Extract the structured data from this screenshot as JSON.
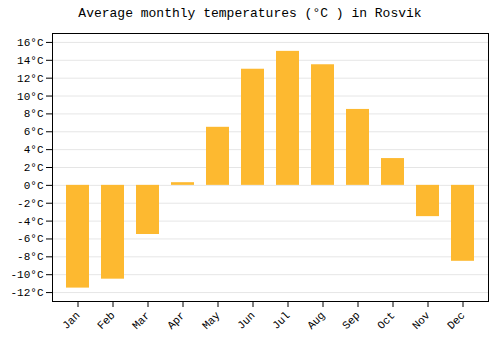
{
  "chart_data": {
    "type": "bar",
    "title": "Average monthly temperatures (°C ) in Rosvik",
    "categories": [
      "Jan",
      "Feb",
      "Mar",
      "Apr",
      "May",
      "Jun",
      "Jul",
      "Aug",
      "Sep",
      "Oct",
      "Nov",
      "Dec"
    ],
    "values": [
      -11.5,
      -10.5,
      -5.5,
      0.3,
      6.5,
      13.0,
      15.0,
      13.5,
      8.5,
      3.0,
      -3.5,
      -8.5
    ],
    "color": "#FDB930",
    "ylim": [
      -13,
      17
    ],
    "yticks": [
      {
        "value": -12,
        "label": "-12°C"
      },
      {
        "value": -10,
        "label": "-10°C"
      },
      {
        "value": -8,
        "label": "-8°C"
      },
      {
        "value": -6,
        "label": "-6°C"
      },
      {
        "value": -4,
        "label": "-4°C"
      },
      {
        "value": -2,
        "label": "-2°C"
      },
      {
        "value": 0,
        "label": "0°C"
      },
      {
        "value": 2,
        "label": "2°C"
      },
      {
        "value": 4,
        "label": "4°C"
      },
      {
        "value": 6,
        "label": "6°C"
      },
      {
        "value": 8,
        "label": "8°C"
      },
      {
        "value": 10,
        "label": "10°C"
      },
      {
        "value": 12,
        "label": "12°C"
      },
      {
        "value": 14,
        "label": "14°C"
      },
      {
        "value": 16,
        "label": "16°C"
      }
    ],
    "grid": true
  }
}
